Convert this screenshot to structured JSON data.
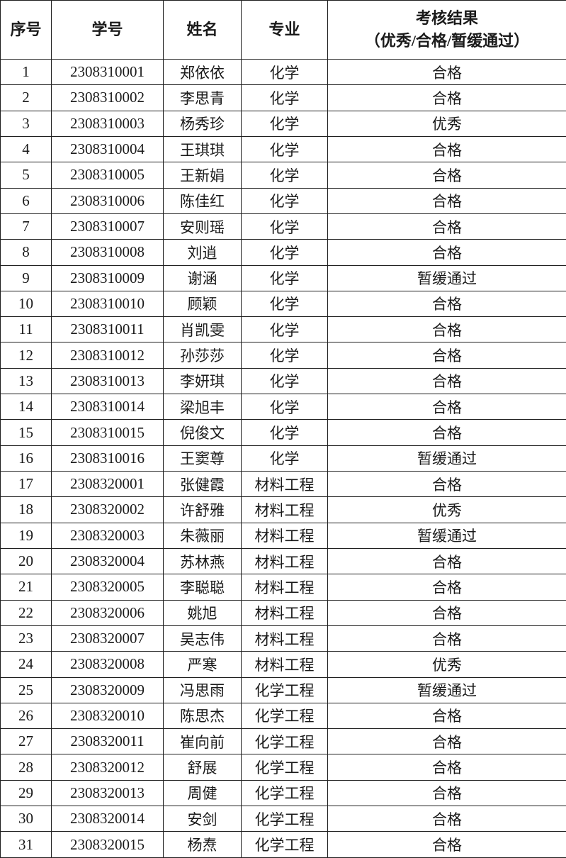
{
  "table": {
    "headers": [
      "序号",
      "学号",
      "姓名",
      "专业"
    ],
    "result_header": {
      "line1": "考核结果",
      "line2": "（优秀/合格/暂缓通过）"
    },
    "rows": [
      [
        "1",
        "2308310001",
        "郑依依",
        "化学",
        "合格"
      ],
      [
        "2",
        "2308310002",
        "李思青",
        "化学",
        "合格"
      ],
      [
        "3",
        "2308310003",
        "杨秀珍",
        "化学",
        "优秀"
      ],
      [
        "4",
        "2308310004",
        "王琪琪",
        "化学",
        "合格"
      ],
      [
        "5",
        "2308310005",
        "王新娟",
        "化学",
        "合格"
      ],
      [
        "6",
        "2308310006",
        "陈佳红",
        "化学",
        "合格"
      ],
      [
        "7",
        "2308310007",
        "安则瑶",
        "化学",
        "合格"
      ],
      [
        "8",
        "2308310008",
        "刘逍",
        "化学",
        "合格"
      ],
      [
        "9",
        "2308310009",
        "谢涵",
        "化学",
        "暂缓通过"
      ],
      [
        "10",
        "2308310010",
        "顾颖",
        "化学",
        "合格"
      ],
      [
        "11",
        "2308310011",
        "肖凯雯",
        "化学",
        "合格"
      ],
      [
        "12",
        "2308310012",
        "孙莎莎",
        "化学",
        "合格"
      ],
      [
        "13",
        "2308310013",
        "李妍琪",
        "化学",
        "合格"
      ],
      [
        "14",
        "2308310014",
        "梁旭丰",
        "化学",
        "合格"
      ],
      [
        "15",
        "2308310015",
        "倪俊文",
        "化学",
        "合格"
      ],
      [
        "16",
        "2308310016",
        "王窦尊",
        "化学",
        "暂缓通过"
      ],
      [
        "17",
        "2308320001",
        "张健霞",
        "材料工程",
        "合格"
      ],
      [
        "18",
        "2308320002",
        "许舒雅",
        "材料工程",
        "优秀"
      ],
      [
        "19",
        "2308320003",
        "朱薇丽",
        "材料工程",
        "暂缓通过"
      ],
      [
        "20",
        "2308320004",
        "苏林燕",
        "材料工程",
        "合格"
      ],
      [
        "21",
        "2308320005",
        "李聪聪",
        "材料工程",
        "合格"
      ],
      [
        "22",
        "2308320006",
        "姚旭",
        "材料工程",
        "合格"
      ],
      [
        "23",
        "2308320007",
        "吴志伟",
        "材料工程",
        "合格"
      ],
      [
        "24",
        "2308320008",
        "严寒",
        "材料工程",
        "优秀"
      ],
      [
        "25",
        "2308320009",
        "冯思雨",
        "化学工程",
        "暂缓通过"
      ],
      [
        "26",
        "2308320010",
        "陈思杰",
        "化学工程",
        "合格"
      ],
      [
        "27",
        "2308320011",
        "崔向前",
        "化学工程",
        "合格"
      ],
      [
        "28",
        "2308320012",
        "舒展",
        "化学工程",
        "合格"
      ],
      [
        "29",
        "2308320013",
        "周健",
        "化学工程",
        "合格"
      ],
      [
        "30",
        "2308320014",
        "安剑",
        "化学工程",
        "合格"
      ],
      [
        "31",
        "2308320015",
        "杨焘",
        "化学工程",
        "合格"
      ]
    ]
  },
  "colors": {
    "background": "#ffffff",
    "border": "#1f1f1f",
    "text": "#1a1a1a"
  }
}
